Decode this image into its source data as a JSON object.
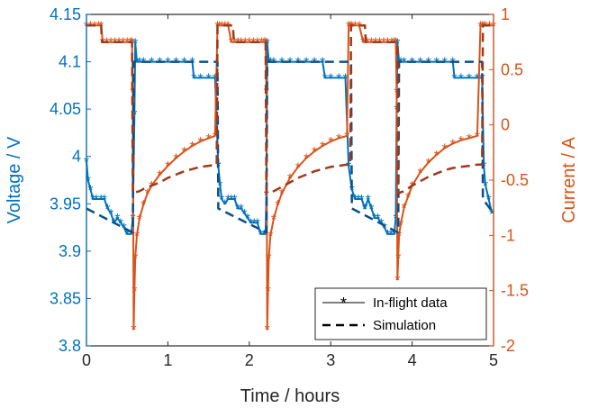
{
  "chart_data": {
    "type": "line",
    "xlabel": "Time  /  hours",
    "ylabel_left": "Voltage  /  V",
    "ylabel_right": "Current  /  A",
    "xlim": [
      0,
      5
    ],
    "ylim_left": [
      3.8,
      4.15
    ],
    "ylim_right": [
      -2,
      1
    ],
    "x_ticks": [
      "0",
      "1",
      "2",
      "3",
      "4",
      "5"
    ],
    "y_left_ticks": [
      "3.8",
      "3.85",
      "3.9",
      "3.95",
      "4",
      "4.05",
      "4.1",
      "4.15"
    ],
    "y_right_ticks": [
      "-2",
      "-1.5",
      "-1",
      "-0.5",
      "0",
      "0.5",
      "1"
    ],
    "grid": false,
    "legend_position": "bottom-right",
    "legend": {
      "inflight_label": "In-flight data",
      "sim_label": "Simulation"
    },
    "colors": {
      "voltage": "#0072BD",
      "current": "#D95319",
      "voltage_sim": "#0B4F8A",
      "current_sim": "#A0391A",
      "axis": "#262626"
    },
    "series": [
      {
        "name": "In-flight data",
        "axis": "left",
        "quantity": "voltage",
        "x": [
          0.0,
          0.02,
          0.05,
          0.08,
          0.12,
          0.18,
          0.22,
          0.26,
          0.3,
          0.34,
          0.38,
          0.42,
          0.46,
          0.5,
          0.55,
          0.57,
          0.59,
          0.6,
          0.62,
          0.65,
          0.7,
          0.8,
          0.9,
          1.0,
          1.1,
          1.2,
          1.3,
          1.32,
          1.4,
          1.5,
          1.58,
          1.62,
          1.64,
          1.66,
          1.7,
          1.74,
          1.78,
          1.82,
          1.86,
          1.9,
          1.94,
          1.98,
          2.02,
          2.06,
          2.1,
          2.14,
          2.18,
          2.2,
          2.21,
          2.22,
          2.24,
          2.26,
          2.3,
          2.4,
          2.5,
          2.6,
          2.7,
          2.8,
          2.9,
          2.93,
          3.0,
          3.1,
          3.18,
          3.22,
          3.26,
          3.3,
          3.34,
          3.38,
          3.42,
          3.46,
          3.5,
          3.54,
          3.58,
          3.62,
          3.66,
          3.7,
          3.74,
          3.78,
          3.8,
          3.81,
          3.82,
          3.84,
          3.86,
          3.9,
          4.0,
          4.1,
          4.2,
          4.3,
          4.4,
          4.5,
          4.52,
          4.6,
          4.7,
          4.8,
          4.86,
          4.88,
          4.9,
          4.94,
          4.98
        ],
        "y": [
          3.995,
          3.975,
          3.965,
          3.955,
          3.955,
          3.955,
          3.955,
          3.945,
          3.94,
          3.93,
          3.935,
          3.93,
          3.925,
          3.918,
          3.918,
          3.935,
          4.045,
          4.12,
          4.1,
          4.1,
          4.1,
          4.1,
          4.1,
          4.1,
          4.1,
          4.1,
          4.1,
          4.083,
          4.083,
          4.083,
          4.083,
          3.99,
          3.97,
          3.955,
          3.95,
          3.955,
          3.955,
          3.955,
          3.945,
          3.945,
          3.94,
          3.935,
          3.93,
          3.93,
          3.93,
          3.918,
          3.918,
          3.918,
          3.96,
          4.12,
          4.1,
          4.1,
          4.1,
          4.1,
          4.1,
          4.1,
          4.1,
          4.1,
          4.1,
          4.083,
          4.083,
          4.083,
          4.083,
          3.99,
          3.965,
          3.955,
          3.955,
          3.955,
          3.945,
          3.955,
          3.945,
          3.935,
          3.935,
          3.93,
          3.925,
          3.918,
          3.918,
          3.918,
          3.935,
          4.05,
          4.12,
          4.1,
          4.1,
          4.1,
          4.1,
          4.1,
          4.1,
          4.1,
          4.1,
          4.1,
          4.083,
          4.083,
          4.083,
          4.083,
          4.083,
          3.99,
          3.97,
          3.955,
          3.94
        ]
      },
      {
        "name": "In-flight data",
        "axis": "right",
        "quantity": "current",
        "x": [
          0.0,
          0.05,
          0.1,
          0.15,
          0.18,
          0.2,
          0.25,
          0.3,
          0.35,
          0.4,
          0.45,
          0.5,
          0.54,
          0.56,
          0.57,
          0.58,
          0.59,
          0.6,
          0.62,
          0.65,
          0.7,
          0.75,
          0.8,
          0.9,
          1.0,
          1.1,
          1.2,
          1.3,
          1.4,
          1.5,
          1.58,
          1.61,
          1.63,
          1.66,
          1.7,
          1.74,
          1.78,
          1.82,
          1.86,
          1.9,
          1.95,
          2.0,
          2.05,
          2.1,
          2.15,
          2.18,
          2.2,
          2.21,
          2.22,
          2.23,
          2.24,
          2.26,
          2.3,
          2.35,
          2.4,
          2.5,
          2.6,
          2.7,
          2.8,
          2.9,
          3.0,
          3.1,
          3.2,
          3.22,
          3.24,
          3.26,
          3.3,
          3.35,
          3.4,
          3.45,
          3.5,
          3.55,
          3.6,
          3.65,
          3.7,
          3.75,
          3.78,
          3.8,
          3.81,
          3.82,
          3.83,
          3.84,
          3.86,
          3.9,
          3.95,
          4.0,
          4.1,
          4.2,
          4.3,
          4.4,
          4.5,
          4.6,
          4.7,
          4.8,
          4.84,
          4.86,
          4.88,
          4.9,
          4.95,
          5.0
        ],
        "y": [
          0.9,
          0.9,
          0.9,
          0.9,
          0.9,
          0.75,
          0.75,
          0.75,
          0.75,
          0.75,
          0.75,
          0.75,
          0.75,
          0.75,
          0.3,
          -1.85,
          -1.5,
          -1.2,
          -1.0,
          -0.85,
          -0.72,
          -0.62,
          -0.55,
          -0.45,
          -0.37,
          -0.3,
          -0.24,
          -0.19,
          -0.15,
          -0.12,
          -0.1,
          0.9,
          0.9,
          0.9,
          0.9,
          0.9,
          0.75,
          0.75,
          0.75,
          0.75,
          0.75,
          0.75,
          0.75,
          0.75,
          0.75,
          0.75,
          0.75,
          0.3,
          -1.85,
          -1.5,
          -1.2,
          -1.0,
          -0.85,
          -0.72,
          -0.62,
          -0.48,
          -0.38,
          -0.3,
          -0.24,
          -0.19,
          -0.15,
          -0.12,
          -0.1,
          0.9,
          0.9,
          0.9,
          0.9,
          0.9,
          0.75,
          0.75,
          0.75,
          0.75,
          0.75,
          0.75,
          0.75,
          0.75,
          0.75,
          0.75,
          0.3,
          -1.4,
          -1.2,
          -1.0,
          -0.9,
          -0.75,
          -0.65,
          -0.55,
          -0.43,
          -0.34,
          -0.27,
          -0.21,
          -0.17,
          -0.14,
          -0.12,
          -0.1,
          0.9,
          0.9,
          0.9,
          0.9,
          0.9,
          0.9
        ]
      },
      {
        "name": "Simulation",
        "axis": "left",
        "quantity": "voltage",
        "x": [
          0.0,
          0.56,
          0.57,
          0.58,
          1.6,
          1.61,
          1.62,
          2.2,
          2.21,
          2.22,
          3.24,
          3.25,
          3.26,
          3.82,
          3.83,
          3.84,
          4.85,
          4.86,
          4.87,
          5.0
        ],
        "y": [
          3.945,
          3.92,
          3.92,
          4.1,
          4.1,
          4.1,
          3.945,
          3.92,
          3.92,
          4.1,
          4.1,
          4.1,
          3.945,
          3.92,
          3.92,
          4.1,
          4.1,
          4.1,
          3.955,
          3.94
        ]
      },
      {
        "name": "Simulation",
        "axis": "right",
        "quantity": "current",
        "x": [
          0.0,
          0.18,
          0.19,
          0.56,
          0.57,
          0.6,
          0.65,
          0.7,
          0.8,
          0.9,
          1.0,
          1.1,
          1.2,
          1.3,
          1.4,
          1.5,
          1.6,
          1.61,
          1.8,
          1.81,
          2.2,
          2.21,
          2.24,
          2.3,
          2.4,
          2.5,
          2.6,
          2.7,
          2.8,
          2.9,
          3.0,
          3.1,
          3.2,
          3.24,
          3.25,
          3.42,
          3.43,
          3.82,
          3.83,
          3.86,
          3.9,
          4.0,
          4.1,
          4.2,
          4.3,
          4.4,
          4.5,
          4.6,
          4.7,
          4.8,
          4.86,
          4.87,
          5.0
        ],
        "y": [
          0.9,
          0.9,
          0.75,
          0.75,
          -0.62,
          -0.61,
          -0.6,
          -0.58,
          -0.55,
          -0.52,
          -0.48,
          -0.45,
          -0.42,
          -0.4,
          -0.38,
          -0.37,
          -0.36,
          0.9,
          0.9,
          0.75,
          0.75,
          -0.62,
          -0.61,
          -0.6,
          -0.56,
          -0.52,
          -0.48,
          -0.45,
          -0.42,
          -0.4,
          -0.38,
          -0.37,
          -0.36,
          -0.36,
          0.9,
          0.9,
          0.75,
          0.75,
          -0.62,
          -0.61,
          -0.6,
          -0.55,
          -0.51,
          -0.47,
          -0.44,
          -0.41,
          -0.39,
          -0.38,
          -0.37,
          -0.36,
          -0.36,
          0.9,
          0.9
        ]
      }
    ]
  }
}
